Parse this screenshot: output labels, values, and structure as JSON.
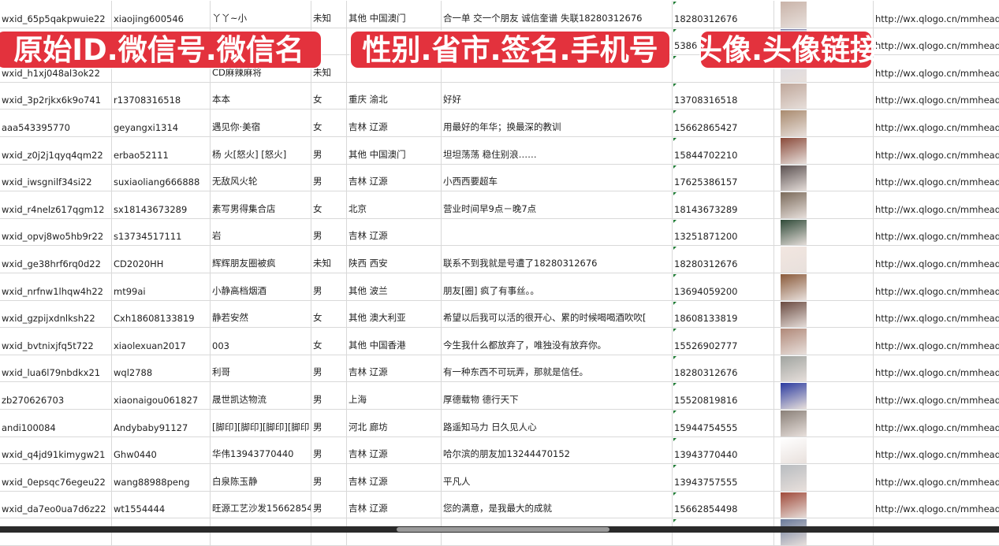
{
  "banners": {
    "b1": "原始ID.微信号.微信名",
    "b2": "性别.省市.签名.手机号",
    "b3": "头像.头像链接"
  },
  "rows": [
    {
      "id": "wxid_65p5qakpwuie22",
      "wechat": "xiaojing600546",
      "name": "丫丫~小",
      "gender": "未知",
      "region": "其他 中国澳门",
      "signature": "合一单 交一个朋友 诚信奎谱 失联18280312676",
      "phone": "18280312676",
      "avatar_color": "#c9b3a8",
      "url": "http://wx.qlogo.cn/mmhead"
    },
    {
      "id": "",
      "wechat": "",
      "name": "",
      "gender": "",
      "region": "",
      "signature": "",
      "phone": "5386",
      "avatar_color": "#6a6fa0",
      "url": "http://wx.qlogo.cn/mmhead"
    },
    {
      "id": "wxid_h1xj048al3ok22",
      "wechat": "",
      "name": "CD麻辣麻将",
      "gender": "未知",
      "region": "",
      "signature": "",
      "phone": "",
      "avatar_color": "#d8d8e0",
      "url": "http://wx.qlogo.cn/mmhead"
    },
    {
      "id": "wxid_3p2rjkx6k9o741",
      "wechat": "r13708316518",
      "name": "本本",
      "gender": "女",
      "region": "重庆 渝北",
      "signature": "好好",
      "phone": "13708316518",
      "avatar_color": "#bfa79a",
      "url": "http://wx.qlogo.cn/mmhead"
    },
    {
      "id": "aaa543395770",
      "wechat": "geyangxi1314",
      "name": "遇见你·美宿",
      "gender": "女",
      "region": "吉林 辽源",
      "signature": "用最好的年华；换最深的教训",
      "phone": "15662865427",
      "avatar_color": "#a98a6e",
      "url": "http://wx.qlogo.cn/mmhead"
    },
    {
      "id": "wxid_z0j2j1qyq4qm22",
      "wechat": "erbao52111",
      "name": "杨 火[怒火] [怒火]",
      "gender": "男",
      "region": "其他 中国澳门",
      "signature": "坦坦荡荡 稳住别浪……",
      "phone": "15844702210",
      "avatar_color": "#8a4a3a",
      "url": "http://wx.qlogo.cn/mmhead"
    },
    {
      "id": "wxid_iwsgnilf34si22",
      "wechat": "suxiaoliang666888",
      "name": "无敌风火轮",
      "gender": "男",
      "region": "吉林 辽源",
      "signature": "小西西要超车",
      "phone": "17625386157",
      "avatar_color": "#5a5050",
      "url": "http://wx.qlogo.cn/mmhead"
    },
    {
      "id": "wxid_r4nelz617qgm12",
      "wechat": "sx18143673289",
      "name": "素写男得集合店",
      "gender": "女",
      "region": "北京",
      "signature": "营业时间早9点－晚7点",
      "phone": "18143673289",
      "avatar_color": "#7a6a5a",
      "url": "http://wx.qlogo.cn/mmhead"
    },
    {
      "id": "wxid_opvj8wo5hb9r22",
      "wechat": "s13734517111",
      "name": "岩",
      "gender": "男",
      "region": "吉林 辽源",
      "signature": "",
      "phone": "13251871200",
      "avatar_color": "#2f4a38",
      "url": "http://wx.qlogo.cn/mmhead"
    },
    {
      "id": "wxid_ge38hrf6rq0d22",
      "wechat": "CD2020HH",
      "name": "辉辉朋友圈被疯",
      "gender": "未知",
      "region": "陕西 西安",
      "signature": "联系不到我就是号遭了18280312676",
      "phone": "18280312676",
      "avatar_color": "#f2e6e0",
      "url": "http://wx.qlogo.cn/mmhead"
    },
    {
      "id": "wxid_nrfnw1lhqw4h22",
      "wechat": "mt99ai",
      "name": "小静高档烟酒",
      "gender": "男",
      "region": "其他 波兰",
      "signature": "朋友[圈] 疯了有事丝。。",
      "phone": "13694059200",
      "avatar_color": "#8a5a3a",
      "url": "http://wx.qlogo.cn/mmhead"
    },
    {
      "id": "wxid_gzpijxdnlksh22",
      "wechat": "Cxh18608133819",
      "name": "静若安然",
      "gender": "女",
      "region": "其他 澳大利亚",
      "signature": "希望以后我可以活的很开心、累的时候喝喝酒吹吹[",
      "phone": "18608133819",
      "avatar_color": "#6a4a40",
      "url": "http://wx.qlogo.cn/mmhead"
    },
    {
      "id": "wxid_bvtnixjfq5t722",
      "wechat": "xiaolexuan2017",
      "name": "003",
      "gender": "女",
      "region": "其他 中国香港",
      "signature": "今生我什么都放弃了，唯独没有放弃你。",
      "phone": "15526902777",
      "avatar_color": "#b08878",
      "url": "http://wx.qlogo.cn/mmhead"
    },
    {
      "id": "wxid_lua6l79nbdkx21",
      "wechat": "wql2788",
      "name": "利哥",
      "gender": "男",
      "region": "吉林 辽源",
      "signature": "有一种东西不可玩弄，那就是信任。",
      "phone": "18280312676",
      "avatar_color": "#a0a4a0",
      "url": "http://wx.qlogo.cn/mmhead"
    },
    {
      "id": "zb270626703",
      "wechat": "xiaonaigou061827",
      "name": "晟世凯达物流",
      "gender": "男",
      "region": "上海",
      "signature": "厚德载物 德行天下",
      "phone": "15520819816",
      "avatar_color": "#2a3aa0",
      "url": "http://wx.qlogo.cn/mmhead"
    },
    {
      "id": "andi100084",
      "wechat": "Andybaby91127",
      "name": "[脚印][脚印][脚印][脚印",
      "gender": "男",
      "region": "河北 廊坊",
      "signature": "路遥知马力 日久见人心",
      "phone": "15944754555",
      "avatar_color": "#8a8078",
      "url": "http://wx.qlogo.cn/mmhead"
    },
    {
      "id": "wxid_q4jd91kimygw21",
      "wechat": "Ghw0440",
      "name": "华伟13943770440",
      "gender": "男",
      "region": "吉林 辽源",
      "signature": "哈尔滨的朋友加13244470152",
      "phone": "13943770440",
      "avatar_color": "#ffffff",
      "url": "http://wx.qlogo.cn/mmhead"
    },
    {
      "id": "wxid_0epsqc76egeu22",
      "wechat": "wang88988peng",
      "name": "白泉陈玉静",
      "gender": "男",
      "region": "吉林 辽源",
      "signature": "平凡人",
      "phone": "13943757555",
      "avatar_color": "#b8bcc0",
      "url": "http://wx.qlogo.cn/mmhead"
    },
    {
      "id": "wxid_da7eo0ua7d6z22",
      "wechat": "wt1554444",
      "name": "旺源工艺沙发15662854",
      "gender": "男",
      "region": "吉林 辽源",
      "signature": "您的满意，是我最大的成就",
      "phone": "15662854498",
      "avatar_color": "#a04a3a",
      "url": "http://wx.qlogo.cn/mmhead"
    },
    {
      "id": "",
      "wechat": "",
      "name": "",
      "gender": "",
      "region": "",
      "signature": "",
      "phone": "",
      "avatar_color": "#6a7a9a",
      "url": ""
    }
  ]
}
